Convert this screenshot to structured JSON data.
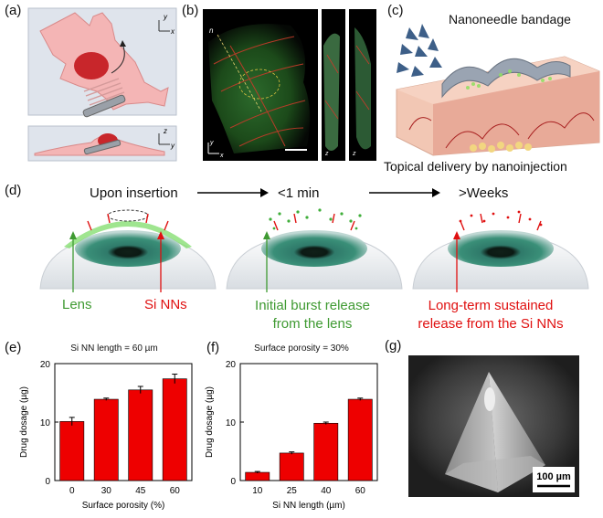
{
  "panels": {
    "a": {
      "label": "(a)",
      "axes_top": {
        "y": "y",
        "x": "x"
      },
      "axes_bottom": {
        "z": "z",
        "y": "y"
      }
    },
    "b": {
      "label": "(b)",
      "marker": "n",
      "axes_main": {
        "y": "y",
        "x": "x"
      },
      "axes_side1": "z",
      "axes_side2": "z"
    },
    "c": {
      "label": "(c)",
      "title": "Nanoneedle bandage",
      "caption": "Topical delivery by nanoinjection"
    },
    "d": {
      "label": "(d)",
      "stages": [
        "Upon insertion",
        "<1 min",
        ">Weeks"
      ],
      "callouts": {
        "lens": "Lens",
        "si_nns": "Si NNs",
        "burst_line1": "Initial burst release",
        "burst_line2": "from the lens",
        "sustained_line1": "Long-term sustained",
        "sustained_line2": "release from the Si NNs"
      },
      "colors": {
        "green": "#3f9a32",
        "red": "#e01010"
      }
    },
    "e": {
      "label": "(e)"
    },
    "f": {
      "label": "(f)"
    },
    "g": {
      "label": "(g)",
      "scalebar": "100 µm"
    }
  },
  "chart_data": [
    {
      "type": "bar",
      "title": "Si NN length = 60 µm",
      "xlabel": "Surface porosity (%)",
      "ylabel": "Drug dosage (µg)",
      "categories": [
        "0",
        "30",
        "45",
        "60"
      ],
      "values": [
        10.1,
        13.9,
        15.5,
        17.4
      ],
      "errors": [
        0.7,
        0.2,
        0.6,
        0.8
      ],
      "ylim": [
        0,
        20
      ],
      "yticks": [
        0,
        10,
        20
      ],
      "bar_color": "#ee0000"
    },
    {
      "type": "bar",
      "title": "Surface porosity = 30%",
      "xlabel": "Si NN length (µm)",
      "ylabel": "Drug dosage (µg)",
      "categories": [
        "10",
        "25",
        "40",
        "60"
      ],
      "values": [
        1.4,
        4.7,
        9.8,
        13.9
      ],
      "errors": [
        0.15,
        0.2,
        0.2,
        0.2
      ],
      "ylim": [
        0,
        20
      ],
      "yticks": [
        0,
        10,
        20
      ],
      "bar_color": "#ee0000"
    }
  ]
}
